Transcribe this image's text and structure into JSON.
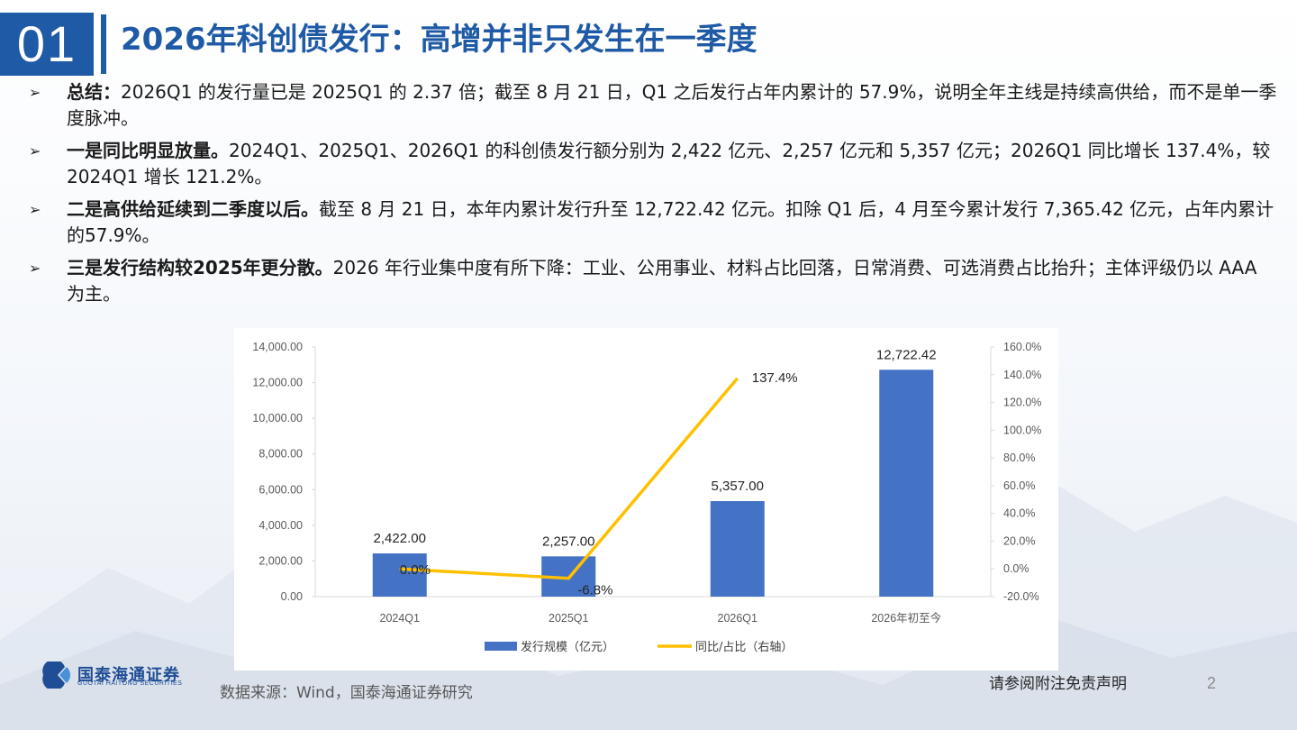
{
  "header": {
    "section_number": "01",
    "title": "2026年科创债发行：高增并非只发生在一季度"
  },
  "bullets": [
    {
      "lead": "总结：",
      "text": "2026Q1 的发行量已是 2025Q1 的 2.37 倍；截至 8 月 21 日，Q1 之后发行占年内累计的 57.9%，说明全年主线是持续高供给，而不是单一季度脉冲。"
    },
    {
      "lead": "一是同比明显放量。",
      "text": "2024Q1、2025Q1、2026Q1 的科创债发行额分别为 2,422 亿元、2,257 亿元和 5,357 亿元；2026Q1 同比增长 137.4%，较 2024Q1 增长 121.2%。"
    },
    {
      "lead": "二是高供给延续到二季度以后。",
      "text": "截至  8 月 21 日，本年内累计发行升至 12,722.42 亿元。扣除 Q1 后，4 月至今累计发行 7,365.42 亿元，占年内累计的57.9%。"
    },
    {
      "lead": "三是发行结构较2025年更分散。",
      "text": "2026  年行业集中度有所下降：工业、公用事业、材料占比回落，日常消费、可选消费占比抬升；主体评级仍以 AAA 为主。"
    }
  ],
  "chart_data": {
    "type": "bar",
    "categories": [
      "2024Q1",
      "2025Q1",
      "2026Q1",
      "2026年初至今"
    ],
    "series": [
      {
        "name": "发行规模（亿元）",
        "type": "bar",
        "axis": "left",
        "values": [
          2422.0,
          2257.0,
          5357.0,
          12722.42
        ],
        "labels": [
          "2,422.00",
          "2,257.00",
          "5,357.00",
          "12,722.42"
        ],
        "color": "#4472c4"
      },
      {
        "name": "同比/占比（右轴）",
        "type": "line",
        "axis": "right",
        "values": [
          0.0,
          -6.8,
          137.4,
          null
        ],
        "labels": [
          "0.0%",
          "-6.8%",
          "137.4%",
          ""
        ],
        "color": "#ffc000"
      }
    ],
    "y_left": {
      "range": [
        0,
        14000
      ],
      "ticks": [
        "0.00",
        "2,000.00",
        "4,000.00",
        "6,000.00",
        "8,000.00",
        "10,000.00",
        "12,000.00",
        "14,000.00"
      ]
    },
    "y_right": {
      "range": [
        -20,
        160
      ],
      "ticks": [
        "-20.0%",
        "0.0%",
        "20.0%",
        "40.0%",
        "60.0%",
        "80.0%",
        "100.0%",
        "120.0%",
        "140.0%",
        "160.0%"
      ]
    },
    "grid": false,
    "legend": "bottom"
  },
  "footer": {
    "logo_text": "国泰海通证券",
    "logo_sub": "GUOTAI HAITONG SECURITIES",
    "source": "数据来源：Wind，国泰海通证券研究",
    "disclaimer": "请参阅附注免责声明",
    "page_number": "2"
  },
  "colors": {
    "brand_blue": "#1f5aa6",
    "bar": "#4472c4",
    "line": "#ffc000"
  }
}
